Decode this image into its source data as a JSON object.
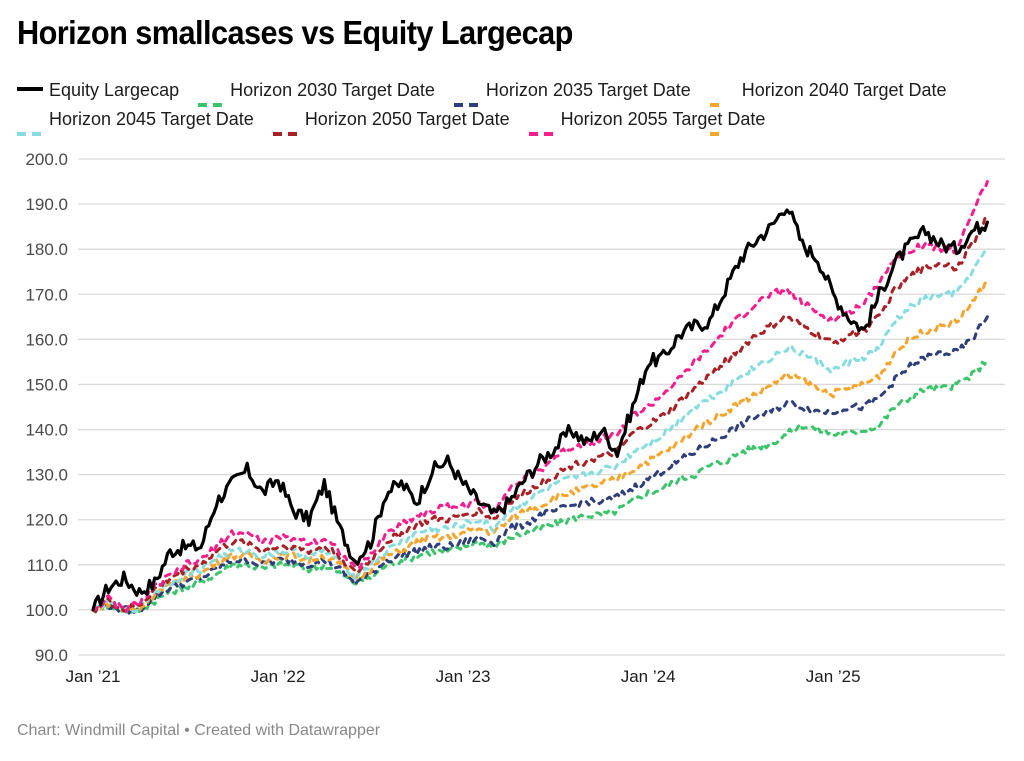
{
  "title": "Horizon smallcases vs Equity Largecap",
  "footer": "Chart: Windmill Capital • Created with Datawrapper",
  "chart_data": {
    "type": "line",
    "title": "Horizon smallcases vs Equity Largecap",
    "xlabel": "",
    "ylabel": "",
    "ylim": [
      90,
      200
    ],
    "yticks": [
      "200.0",
      "190.0",
      "180.0",
      "170.0",
      "160.0",
      "150.0",
      "140.0",
      "130.0",
      "120.0",
      "110.0",
      "100.0",
      "90.0"
    ],
    "ytick_values": [
      200,
      190,
      180,
      170,
      160,
      150,
      140,
      130,
      120,
      110,
      100,
      90
    ],
    "xticks": [
      "Jan ’21",
      "Jan ’22",
      "Jan ’23",
      "Jan ’24",
      "Jan ’25"
    ],
    "xtick_months": [
      0,
      12,
      24,
      36,
      48
    ],
    "x_unit": "months since Jan 2021",
    "grid": true,
    "legend_position": "top",
    "series": [
      {
        "name": "Equity Largecap",
        "color": "#000000",
        "style": "solid",
        "values": [
          100,
          105,
          107,
          104,
          106,
          113,
          114,
          114,
          124,
          128,
          131,
          126,
          129,
          122,
          120,
          128,
          118,
          111,
          115,
          126,
          128,
          124,
          131,
          133,
          128,
          124,
          121,
          124,
          129,
          133,
          136,
          140,
          137,
          140,
          135,
          145,
          155,
          156,
          161,
          163,
          164,
          171,
          178,
          182,
          185,
          190,
          181,
          178,
          170,
          165,
          162,
          170,
          177,
          181,
          184,
          181,
          180,
          184,
          186
        ]
      },
      {
        "name": "Horizon 2030 Target Date",
        "color": "#3cc46b",
        "style": "dashed",
        "values": [
          100,
          101,
          100,
          100,
          102,
          104,
          105,
          106,
          108,
          110,
          110,
          109,
          110,
          110,
          109,
          110,
          108,
          106,
          107,
          110,
          111,
          112,
          113,
          113,
          114,
          115,
          114,
          116,
          117,
          118,
          119,
          120,
          121,
          121,
          122,
          124,
          126,
          127,
          129,
          130,
          132,
          133,
          135,
          136,
          137,
          139,
          141,
          140,
          139,
          139,
          140,
          141,
          145,
          147,
          149,
          149,
          150,
          152,
          155.5
        ]
      },
      {
        "name": "Horizon 2035 Target Date",
        "color": "#2e3e7a",
        "style": "dashed",
        "values": [
          100,
          101,
          100,
          100,
          103,
          105,
          106,
          107,
          109,
          111,
          111,
          110,
          111,
          111,
          110,
          111,
          109,
          106,
          108,
          111,
          112,
          113,
          114,
          114,
          115,
          116,
          115,
          118,
          119,
          121,
          122,
          123,
          124,
          124,
          125,
          127,
          129,
          131,
          133,
          135,
          137,
          139,
          141,
          143,
          144,
          146,
          145,
          144,
          144,
          145,
          145,
          147,
          151,
          154,
          156,
          157,
          157,
          160,
          165
        ]
      },
      {
        "name": "Horizon 2040 Target",
        "display_name": "Horizon 2040 Target Date",
        "color": "#f5a42d",
        "style": "dashed",
        "values": [
          100,
          101.5,
          100,
          100,
          103.5,
          105.5,
          107,
          108,
          110.5,
          112,
          112,
          111,
          112,
          112,
          111,
          112,
          110,
          107,
          109,
          112,
          113,
          115,
          116,
          116,
          117,
          118,
          117,
          120,
          122,
          123,
          125,
          126,
          127,
          128,
          129,
          131,
          133,
          135,
          137,
          140,
          142,
          144,
          146,
          148,
          150,
          152,
          151,
          149,
          148,
          149,
          150,
          152,
          157,
          160,
          162,
          163,
          164,
          168,
          173
        ]
      },
      {
        "name": "Horizon 2045 Target Date",
        "color": "#86dcdf",
        "style": "dashed",
        "values": [
          100,
          102,
          100,
          100.5,
          104,
          106,
          108,
          109,
          111.5,
          113,
          113,
          112,
          113,
          113,
          112,
          113,
          111,
          107.5,
          110,
          113,
          115,
          117,
          118,
          118,
          119,
          120,
          118,
          122,
          124,
          126,
          128,
          129,
          130,
          131,
          132,
          135,
          137,
          139,
          142,
          145,
          147,
          149,
          152,
          154,
          156,
          158,
          157,
          155,
          153,
          155,
          156,
          158,
          164,
          167,
          169,
          170,
          170,
          175,
          180
        ]
      },
      {
        "name": "Horizon 2050 Target Date",
        "color": "#a81f24",
        "style": "dashed",
        "values": [
          100,
          102,
          100,
          101,
          104.5,
          107,
          109,
          110,
          113,
          115,
          115,
          113,
          114,
          114,
          113,
          114,
          112,
          108,
          111,
          115,
          117,
          119,
          120,
          120,
          121,
          122,
          120,
          124,
          126,
          128,
          130,
          132,
          133,
          134,
          135,
          139,
          141,
          143,
          146,
          149,
          152,
          155,
          158,
          161,
          163,
          165,
          163,
          161,
          159,
          161,
          162,
          165,
          171,
          174,
          176,
          177,
          176,
          181,
          187
        ]
      },
      {
        "name": "Horizon 2055 Target Date",
        "color": "#f51e8c",
        "style": "dashed",
        "values": [
          100,
          102.5,
          100,
          101.5,
          105,
          107.5,
          110,
          111,
          114,
          117,
          117,
          115,
          116,
          116,
          115,
          116,
          113,
          109,
          112,
          117,
          119,
          121,
          122,
          123,
          123,
          124,
          122,
          127,
          129,
          131,
          134,
          136,
          137,
          138,
          139,
          143,
          145,
          148,
          151,
          155,
          158,
          162,
          165,
          168,
          170,
          171,
          168,
          166,
          164,
          166,
          168,
          173,
          178,
          180,
          181,
          180,
          180,
          188,
          195
        ]
      }
    ]
  }
}
